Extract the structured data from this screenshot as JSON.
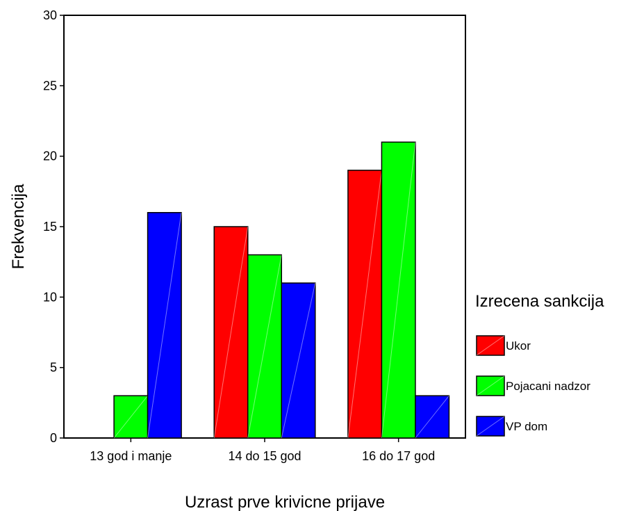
{
  "chart_data": {
    "type": "bar",
    "xlabel": "Uzrast prve krivicne prijave",
    "ylabel": "Frekvencija",
    "ylim": [
      0,
      30
    ],
    "yticks": [
      0,
      5,
      10,
      15,
      20,
      25,
      30
    ],
    "categories": [
      "13 god i manje",
      "14 do 15 god",
      "16 do 17 god"
    ],
    "legend": {
      "title": "Izrecena sankcija",
      "position": "right"
    },
    "series": [
      {
        "name": "Ukor",
        "color": "#ff0000",
        "values": [
          0,
          15,
          19
        ]
      },
      {
        "name": "Pojacani nadzor",
        "color": "#00ff00",
        "values": [
          3,
          13,
          21
        ]
      },
      {
        "name": "VP dom",
        "color": "#0000ff",
        "values": [
          16,
          11,
          3
        ]
      }
    ],
    "grid": false
  }
}
